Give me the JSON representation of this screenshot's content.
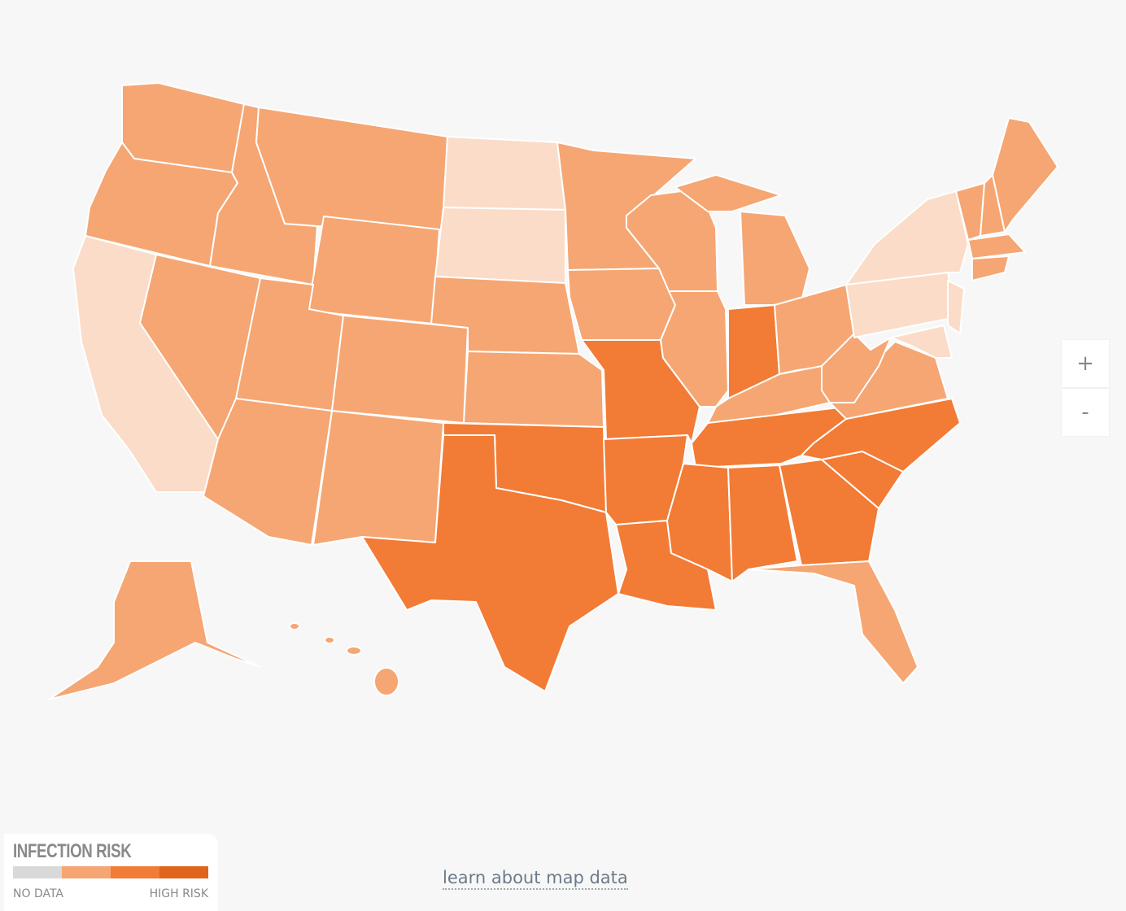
{
  "legend": {
    "title": "INFECTION RISK",
    "colors": [
      "#d9d9d9",
      "#f5a673",
      "#f27b35",
      "#e0641c"
    ],
    "low_label": "NO DATA",
    "high_label": "HIGH RISK"
  },
  "zoom": {
    "in": "+",
    "out": "-"
  },
  "link": "learn about map data"
}
